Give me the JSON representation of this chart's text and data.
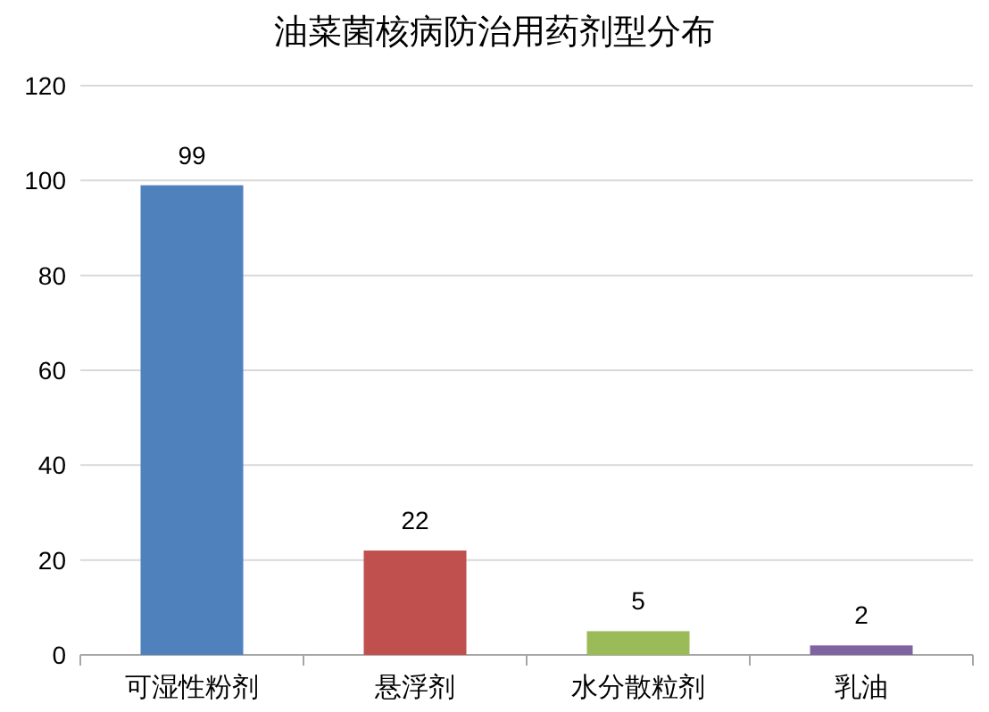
{
  "chart_data": {
    "type": "bar",
    "title": "油菜菌核病防治用药剂型分布",
    "categories": [
      "可湿性粉剂",
      "悬浮剂",
      "水分散粒剂",
      "乳油"
    ],
    "values": [
      99,
      22,
      5,
      2
    ],
    "colors": [
      "#4f81bd",
      "#c0504d",
      "#9bbb59",
      "#8064a2"
    ],
    "ylim": [
      0,
      120
    ],
    "yticks": [
      0,
      20,
      40,
      60,
      80,
      100,
      120
    ],
    "grid": "y",
    "data_labels": true
  }
}
